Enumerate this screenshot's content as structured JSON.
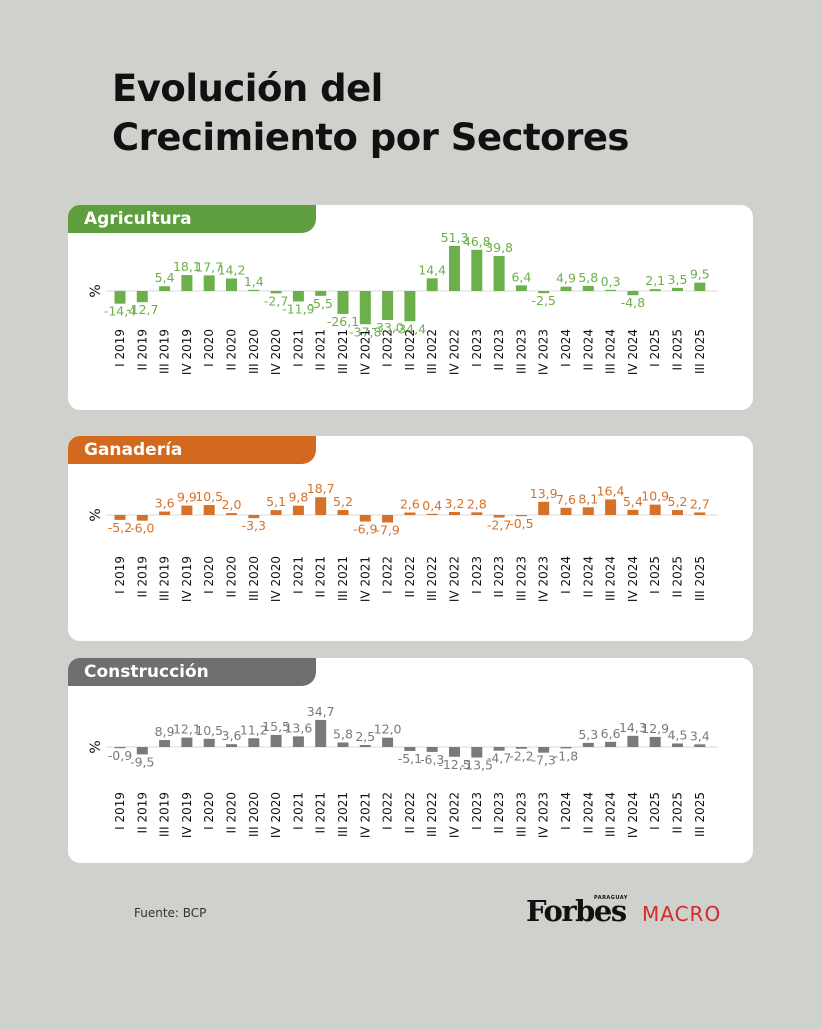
{
  "title": {
    "line1": "Evolución del",
    "line2": "Crecimiento por Sectores"
  },
  "footer": {
    "source": "Fuente: BCP",
    "brand": "Forbes",
    "brand_sub": "PARAGUAY",
    "section": "MACRO"
  },
  "unit": "%",
  "chart_data": [
    {
      "type": "bar",
      "title": "Agricultura",
      "color": "#6bb04a",
      "tab_color": "#5f9e3e",
      "ylabel": "%",
      "categories": [
        "I 2019",
        "II 2019",
        "III 2019",
        "IV 2019",
        "I 2020",
        "II 2020",
        "III 2020",
        "IV 2020",
        "I 2021",
        "II 2021",
        "III 2021",
        "IV 2021",
        "I 2022",
        "II 2022",
        "III 2022",
        "IV 2022",
        "I 2023",
        "II 2023",
        "III 2023",
        "IV 2023",
        "I 2024",
        "II 2024",
        "III 2024",
        "IV 2024",
        "I 2025",
        "II 2025",
        "III 2025"
      ],
      "values": [
        -14.4,
        -12.7,
        5.4,
        18.1,
        17.7,
        14.2,
        1.4,
        -2.7,
        -11.9,
        -5.5,
        -26.1,
        -37.8,
        -33.0,
        -34.4,
        14.4,
        51.3,
        46.8,
        39.8,
        6.4,
        -2.5,
        4.9,
        5.8,
        0.3,
        -4.8,
        2.1,
        3.5,
        9.5
      ],
      "labels": [
        "-14,4",
        "-12,7",
        "5,4",
        "18,1",
        "17,7",
        "14,2",
        "1,4",
        "-2,7",
        "-11,9",
        "-5,5",
        "-26,1",
        "-37,8",
        "-33,0",
        "-34,4",
        "14,4",
        "51,3",
        "46,8",
        "39,8",
        "6,4",
        "-2,5",
        "4,9",
        "5,8",
        "0,3",
        "-4,8",
        "2,1",
        "3,5",
        "9,5"
      ]
    },
    {
      "type": "bar",
      "title": "Ganadería",
      "color": "#d4722a",
      "tab_color": "#d2691e",
      "ylabel": "%",
      "categories": [
        "I 2019",
        "II 2019",
        "III 2019",
        "IV 2019",
        "I 2020",
        "II 2020",
        "III 2020",
        "IV 2020",
        "I 2021",
        "II 2021",
        "III 2021",
        "IV 2021",
        "I 2022",
        "II 2022",
        "III 2022",
        "IV 2022",
        "I 2023",
        "II 2023",
        "III 2023",
        "IV 2023",
        "I 2024",
        "II 2024",
        "III 2024",
        "IV 2024",
        "I 2025",
        "II 2025",
        "III 2025"
      ],
      "values": [
        -5.2,
        -6.0,
        3.6,
        9.9,
        10.5,
        2.0,
        -3.3,
        5.1,
        9.8,
        18.7,
        5.2,
        -6.9,
        -7.9,
        2.6,
        0.4,
        3.2,
        2.8,
        -2.7,
        -0.5,
        13.9,
        7.6,
        8.1,
        16.4,
        5.4,
        10.9,
        5.2,
        2.7
      ],
      "labels": [
        "-5,2",
        "-6,0",
        "3,6",
        "9,9",
        "10,5",
        "2,0",
        "-3,3",
        "5,1",
        "9,8",
        "18,7",
        "5,2",
        "-6,9",
        "-7,9",
        "2,6",
        "0,4",
        "3,2",
        "2,8",
        "-2,7",
        "-0,5",
        "13,9",
        "7,6",
        "8,1",
        "16,4",
        "5,4",
        "10,9",
        "5,2",
        "2,7"
      ]
    },
    {
      "type": "bar",
      "title": "Construcción",
      "color": "#7a7a7a",
      "tab_color": "#6f6f6f",
      "ylabel": "%",
      "categories": [
        "I 2019",
        "II 2019",
        "III 2019",
        "IV 2019",
        "I 2020",
        "II 2020",
        "III 2020",
        "IV 2020",
        "I 2021",
        "II 2021",
        "III 2021",
        "IV 2021",
        "I 2022",
        "II 2022",
        "III 2022",
        "IV 2022",
        "I 2023",
        "II 2023",
        "III 2023",
        "IV 2023",
        "I 2024",
        "II 2024",
        "III 2024",
        "IV 2024",
        "I 2025",
        "II 2025",
        "III 2025"
      ],
      "values": [
        -0.9,
        -9.5,
        8.9,
        12.1,
        10.5,
        3.6,
        11.2,
        15.5,
        13.6,
        34.7,
        5.8,
        2.5,
        12.0,
        -5.1,
        -6.3,
        -12.5,
        -13.5,
        -4.7,
        -2.2,
        -7.3,
        -1.8,
        5.3,
        6.6,
        14.3,
        12.9,
        4.5,
        3.4
      ],
      "labels": [
        "-0,9",
        "-9,5",
        "8,9",
        "12,1",
        "10,5",
        "3,6",
        "11,2",
        "15,5",
        "13,6",
        "34,7",
        "5,8",
        "2,5",
        "12,0",
        "-5,1",
        "-6,3",
        "-12,5",
        "-13,5",
        "-4,7",
        "-2,2",
        "-7,3",
        "-1,8",
        "5,3",
        "6,6",
        "14,3",
        "12,9",
        "4,5",
        "3,4"
      ]
    }
  ]
}
